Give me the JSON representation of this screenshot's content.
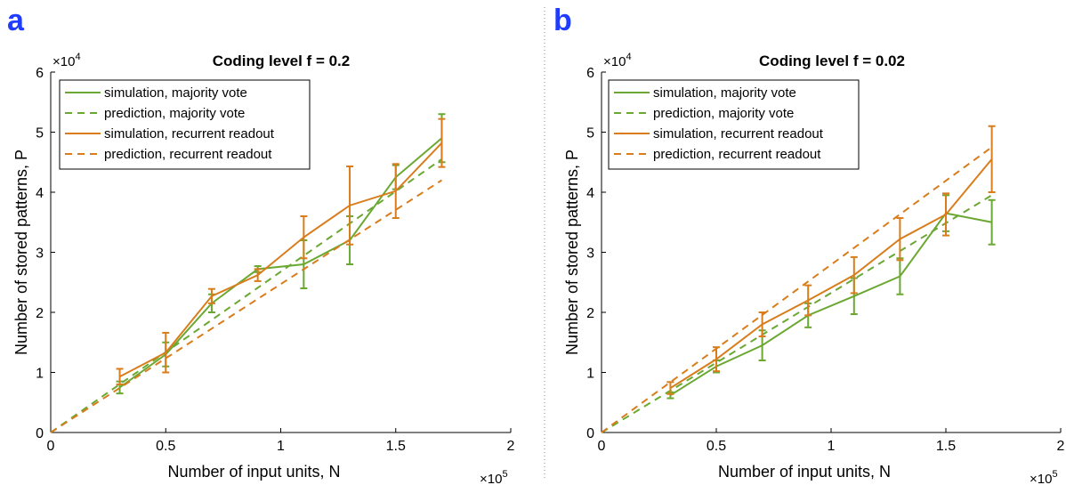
{
  "panels": [
    {
      "letter": "a"
    },
    {
      "letter": "b"
    }
  ],
  "colors": {
    "green": "#6aa832",
    "orange": "#d97d1c",
    "letter": "#1f3cff"
  },
  "chart_data": [
    {
      "type": "line",
      "title": "Coding level f = 0.2",
      "xlabel": "Number of input units, N",
      "ylabel": "Number of stored patterns, P",
      "x_exponent": "5",
      "y_exponent": "4",
      "xlim": [
        0,
        2
      ],
      "ylim": [
        0,
        6
      ],
      "xticks": [
        "0",
        "0.5",
        "1",
        "1.5",
        "2"
      ],
      "yticks": [
        "0",
        "1",
        "2",
        "3",
        "4",
        "5",
        "6"
      ],
      "legend_position": "top-left",
      "series": [
        {
          "name": "simulation, majority vote",
          "color": "green",
          "dash": false,
          "x": [
            0.3,
            0.5,
            0.7,
            0.9,
            1.1,
            1.3,
            1.5,
            1.7
          ],
          "y": [
            0.75,
            1.3,
            2.15,
            2.72,
            2.8,
            3.2,
            4.25,
            4.9
          ],
          "err": [
            0.1,
            0.2,
            0.15,
            0.05,
            0.4,
            0.4,
            0.2,
            0.4
          ]
        },
        {
          "name": "prediction, majority vote",
          "color": "green",
          "dash": true,
          "x": [
            0,
            1.7
          ],
          "y": [
            0,
            4.55
          ]
        },
        {
          "name": "simulation, recurrent readout",
          "color": "orange",
          "dash": false,
          "x": [
            0.3,
            0.5,
            0.7,
            0.9,
            1.1,
            1.3,
            1.5,
            1.7
          ],
          "y": [
            0.93,
            1.33,
            2.27,
            2.62,
            3.25,
            3.78,
            4.02,
            4.82
          ],
          "err": [
            0.13,
            0.33,
            0.12,
            0.1,
            0.35,
            0.65,
            0.45,
            0.4
          ]
        },
        {
          "name": "prediction, recurrent readout",
          "color": "orange",
          "dash": true,
          "x": [
            0,
            1.7
          ],
          "y": [
            0,
            4.2
          ]
        }
      ]
    },
    {
      "type": "line",
      "title": "Coding level f = 0.02",
      "xlabel": "Number of input units, N",
      "ylabel": "Number of stored patterns, P",
      "x_exponent": "5",
      "y_exponent": "4",
      "xlim": [
        0,
        2
      ],
      "ylim": [
        0,
        6
      ],
      "xticks": [
        "0",
        "0.5",
        "1",
        "1.5",
        "2"
      ],
      "yticks": [
        "0",
        "1",
        "2",
        "3",
        "4",
        "5",
        "6"
      ],
      "legend_position": "top-left",
      "series": [
        {
          "name": "simulation, majority vote",
          "color": "green",
          "dash": false,
          "x": [
            0.3,
            0.5,
            0.7,
            0.9,
            1.1,
            1.3,
            1.5,
            1.7
          ],
          "y": [
            0.62,
            1.1,
            1.45,
            1.95,
            2.27,
            2.6,
            3.65,
            3.5
          ],
          "err": [
            0.05,
            0.1,
            0.25,
            0.2,
            0.3,
            0.3,
            0.3,
            0.37
          ]
        },
        {
          "name": "prediction, majority vote",
          "color": "green",
          "dash": true,
          "x": [
            0,
            1.7
          ],
          "y": [
            0,
            3.95
          ]
        },
        {
          "name": "simulation, recurrent readout",
          "color": "orange",
          "dash": false,
          "x": [
            0.3,
            0.5,
            0.7,
            0.9,
            1.1,
            1.3,
            1.5,
            1.7
          ],
          "y": [
            0.74,
            1.22,
            1.8,
            2.2,
            2.62,
            3.22,
            3.63,
            4.55
          ],
          "err": [
            0.1,
            0.2,
            0.2,
            0.25,
            0.3,
            0.35,
            0.35,
            0.55
          ]
        },
        {
          "name": "prediction, recurrent readout",
          "color": "orange",
          "dash": true,
          "x": [
            0,
            1.7
          ],
          "y": [
            0,
            4.75
          ]
        }
      ]
    }
  ]
}
